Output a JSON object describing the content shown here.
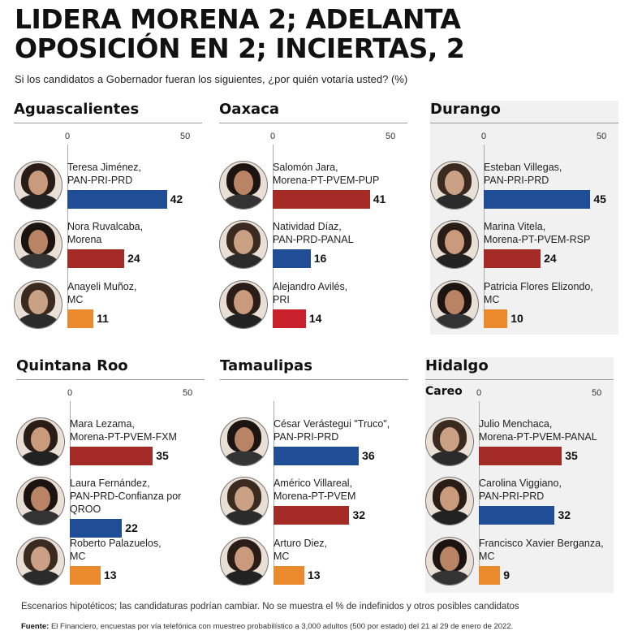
{
  "title": "LIDERA MORENA 2; ADELANTA OPOSICIÓN EN 2; INCIERTAS, 2",
  "subtitle": "Si los candidatos a Gobernador fueran los siguientes, ¿por quién votaría usted? (%)",
  "footnote": "Escenarios hipotéticos; las candidaturas podrían cambiar. No se muestra el % de indefinidos y otros posibles candidatos",
  "source_label": "Fuente:",
  "source_text": "El Financiero, encuestas por vía telefónica con muestreo probabilístico a 3,000 adultos (500 por estado) del 21 al 29 de enero de 2022.",
  "colors": {
    "PAN": "#1f4e96",
    "Morena": "#a32a25",
    "MC": "#ea8a2c",
    "PRI": "#c8212b"
  },
  "chart_data": [
    {
      "type": "bar",
      "state": "Aguascalientes",
      "sublabel": "",
      "xlim": [
        0,
        50
      ],
      "ticks": [
        "0",
        "50"
      ],
      "categories": [
        "Teresa Jiménez, PAN-PRI-PRD",
        "Nora Ruvalcaba, Morena",
        "Anayeli Muñoz, MC"
      ],
      "values": [
        42,
        24,
        11
      ],
      "names": [
        "Teresa Jiménez,",
        "Nora Ruvalcaba,",
        "Anayeli Muñoz,"
      ],
      "parties": [
        "PAN-PRI-PRD",
        "Morena",
        "MC"
      ],
      "colors": [
        "#1f4e96",
        "#a32a25",
        "#ea8a2c"
      ]
    },
    {
      "type": "bar",
      "state": "Oaxaca",
      "sublabel": "",
      "xlim": [
        0,
        50
      ],
      "ticks": [
        "0",
        "50"
      ],
      "categories": [
        "Salomón Jara, Morena-PT-PVEM-PUP",
        "Natividad Díaz, PAN-PRD-PANAL",
        "Alejandro Avilés, PRI"
      ],
      "values": [
        41,
        16,
        14
      ],
      "names": [
        "Salomón Jara,",
        "Natividad Díaz,",
        "Alejandro Avilés,"
      ],
      "parties": [
        "Morena-PT-PVEM-PUP",
        "PAN-PRD-PANAL",
        "PRI"
      ],
      "colors": [
        "#a32a25",
        "#1f4e96",
        "#c8212b"
      ]
    },
    {
      "type": "bar",
      "state": "Durango",
      "sublabel": "",
      "xlim": [
        0,
        50
      ],
      "ticks": [
        "0",
        "50"
      ],
      "categories": [
        "Esteban Villegas, PAN-PRI-PRD",
        "Marina Vitela, Morena-PT-PVEM-RSP",
        "Patricia Flores Elizondo, MC"
      ],
      "values": [
        45,
        24,
        10
      ],
      "names": [
        "Esteban Villegas,",
        "Marina Vitela,",
        "Patricia Flores Elizondo,"
      ],
      "parties": [
        "PAN-PRI-PRD",
        "Morena-PT-PVEM-RSP",
        "MC"
      ],
      "colors": [
        "#1f4e96",
        "#a32a25",
        "#ea8a2c"
      ]
    },
    {
      "type": "bar",
      "state": "Quintana Roo",
      "sublabel": "",
      "xlim": [
        0,
        50
      ],
      "ticks": [
        "0",
        "50"
      ],
      "categories": [
        "Mara Lezama, Morena-PT-PVEM-FXM",
        "Laura Fernández, PAN-PRD-Confianza por QROO",
        "Roberto Palazuelos, MC"
      ],
      "values": [
        35,
        22,
        13
      ],
      "names": [
        "Mara Lezama,",
        "Laura Fernández,",
        "Roberto Palazuelos,"
      ],
      "parties": [
        "Morena-PT-PVEM-FXM",
        "PAN-PRD-Confianza por\nQROO",
        "MC"
      ],
      "colors": [
        "#a32a25",
        "#1f4e96",
        "#ea8a2c"
      ]
    },
    {
      "type": "bar",
      "state": "Tamaulipas",
      "sublabel": "",
      "xlim": [
        0,
        50
      ],
      "ticks": [
        "",
        ""
      ],
      "categories": [
        "César Verástegui \"Truco\", PAN-PRI-PRD",
        "Américo Villareal, Morena-PT-PVEM",
        "Arturo Diez, MC"
      ],
      "values": [
        36,
        32,
        13
      ],
      "names": [
        "César Verástegui \"Truco\",",
        "Américo Villareal,",
        "Arturo Diez,"
      ],
      "parties": [
        "PAN-PRI-PRD",
        "Morena-PT-PVEM",
        "MC"
      ],
      "colors": [
        "#1f4e96",
        "#a32a25",
        "#ea8a2c"
      ]
    },
    {
      "type": "bar",
      "state": "Hidalgo",
      "sublabel": "Careo",
      "xlim": [
        0,
        50
      ],
      "ticks": [
        "0",
        "50"
      ],
      "categories": [
        "Julio Menchaca, Morena-PT-PVEM-PANAL",
        "Carolina Viggiano, PAN-PRI-PRD",
        "Francisco Xavier Berganza, MC"
      ],
      "values": [
        35,
        32,
        9
      ],
      "names": [
        "Julio Menchaca,",
        "Carolina Viggiano,",
        "Francisco Xavier Berganza,"
      ],
      "parties": [
        "Morena-PT-PVEM-PANAL",
        "PAN-PRI-PRD",
        "MC"
      ],
      "colors": [
        "#a32a25",
        "#1f4e96",
        "#ea8a2c"
      ]
    }
  ]
}
